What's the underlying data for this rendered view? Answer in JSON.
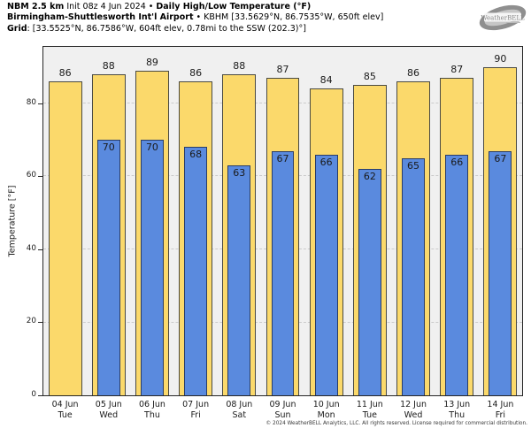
{
  "header": {
    "line1_bold1": "NBM 2.5 km",
    "line1_regular": " Init 08z 4 Jun 2024 • ",
    "line1_bold2": "Daily High/Low Temperature (°F)",
    "line2_bold": "Birmingham-Shuttlesworth Int'l Airport",
    "line2_regular": " • KBHM [33.5629°N, 86.7535°W, 650ft elev]",
    "line3_bold": "Grid",
    "line3_regular": ": [33.5525°N, 86.7586°W, 604ft elev, 0.78mi to the SSW (202.3)°]"
  },
  "logo": {
    "brand": "WeatherBELL"
  },
  "colors": {
    "high_fill": "#FBD96B",
    "high_border": "#4A4A42",
    "low_fill": "#5A8ADE",
    "low_border": "#2A3D66",
    "plot_bg": "#F0F0F0",
    "grid": "#CBCBCB",
    "axis": "#262626"
  },
  "chart_data": {
    "type": "bar",
    "title": "NBM 2.5 km Init 08z 4 Jun 2024 • Daily High/Low Temperature (°F)",
    "subtitle": "Birmingham-Shuttlesworth Int'l Airport • KBHM",
    "ylabel": "Temperature [°F]",
    "xlabel": "",
    "ylim": [
      0,
      95.5
    ],
    "yticks": [
      0,
      20,
      40,
      60,
      80
    ],
    "grid": true,
    "legend_position": "none",
    "categories": [
      {
        "date": "04 Jun",
        "day": "Tue"
      },
      {
        "date": "05 Jun",
        "day": "Wed"
      },
      {
        "date": "06 Jun",
        "day": "Thu"
      },
      {
        "date": "07 Jun",
        "day": "Fri"
      },
      {
        "date": "08 Jun",
        "day": "Sat"
      },
      {
        "date": "09 Jun",
        "day": "Sun"
      },
      {
        "date": "10 Jun",
        "day": "Mon"
      },
      {
        "date": "11 Jun",
        "day": "Tue"
      },
      {
        "date": "12 Jun",
        "day": "Wed"
      },
      {
        "date": "13 Jun",
        "day": "Thu"
      },
      {
        "date": "14 Jun",
        "day": "Fri"
      }
    ],
    "series": [
      {
        "name": "Daily High",
        "color": "#FBD96B",
        "values": [
          86,
          88,
          89,
          86,
          88,
          87,
          84,
          85,
          86,
          87,
          90
        ]
      },
      {
        "name": "Daily Low",
        "color": "#5A8ADE",
        "values": [
          null,
          70,
          70,
          68,
          63,
          67,
          66,
          62,
          65,
          66,
          67
        ]
      }
    ]
  },
  "footer": {
    "copyright": "© 2024 WeatherBELL Analytics, LLC. All rights reserved. License required for commercial distribution."
  }
}
